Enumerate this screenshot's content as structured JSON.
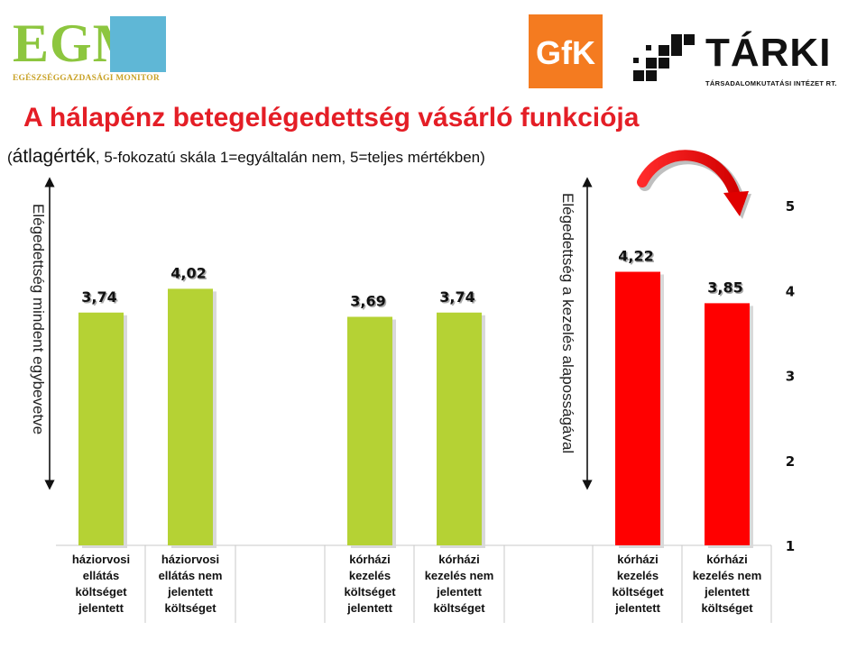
{
  "logos": {
    "egm_main": "EGM",
    "egm_sub": "EGÉSZSÉGGAZDASÁGI MONITOR",
    "gfk": "GfK",
    "tarki": "TÁRKI",
    "tarki_sub": "TÁRSADALOMKUTATÁSI INTÉZET RT."
  },
  "header": {
    "title": "A hálapénz betegelégedettség vásárló funkciója",
    "subtitle_open": "(",
    "subtitle_bold": "átlagérték",
    "subtitle_rest": ", 5-fokozatú skála 1=egyáltalán nem, 5=teljes mértékben)"
  },
  "annotations": {
    "left_vertical": "Elégedettség mindent egybevetve",
    "middle_vertical": "Elégedettség a kezelés alaposságával"
  },
  "colors": {
    "green": "#b5d234",
    "red": "#ff0000",
    "title": "#e41e26"
  },
  "chart_data": {
    "type": "bar",
    "ylim": [
      1,
      5
    ],
    "yticks": [
      "1",
      "2",
      "3",
      "4",
      "5"
    ],
    "categories": [
      "háziorvosi ellátás költséget jelentett",
      "háziorvosi ellátás nem jelentett költséget",
      "kórházi kezelés költséget jelentett",
      "kórházi kezelés nem jelentett költséget",
      "kórházi kezelés költséget jelentett",
      "kórházi kezelés nem jelentett költséget"
    ],
    "values": [
      3.74,
      4.02,
      3.69,
      3.74,
      4.22,
      3.85
    ],
    "value_labels": [
      "3,74",
      "4,02",
      "3,69",
      "3,74",
      "4,22",
      "3,85"
    ],
    "category_lines": [
      [
        "háziorvosi",
        "ellátás",
        "költséget",
        "jelentett"
      ],
      [
        "háziorvosi",
        "ellátás nem",
        "jelentett",
        "költséget"
      ],
      [
        "kórházi",
        "kezelés",
        "költséget",
        "jelentett"
      ],
      [
        "kórházi",
        "kezelés nem",
        "jelentett",
        "költséget"
      ],
      [
        "kórházi",
        "kezelés",
        "költséget",
        "jelentett"
      ],
      [
        "kórházi",
        "kezelés nem",
        "jelentett",
        "költséget"
      ]
    ],
    "bar_colors": [
      "#b5d234",
      "#b5d234",
      "#b5d234",
      "#b5d234",
      "#ff0000",
      "#ff0000"
    ],
    "grid": false
  }
}
